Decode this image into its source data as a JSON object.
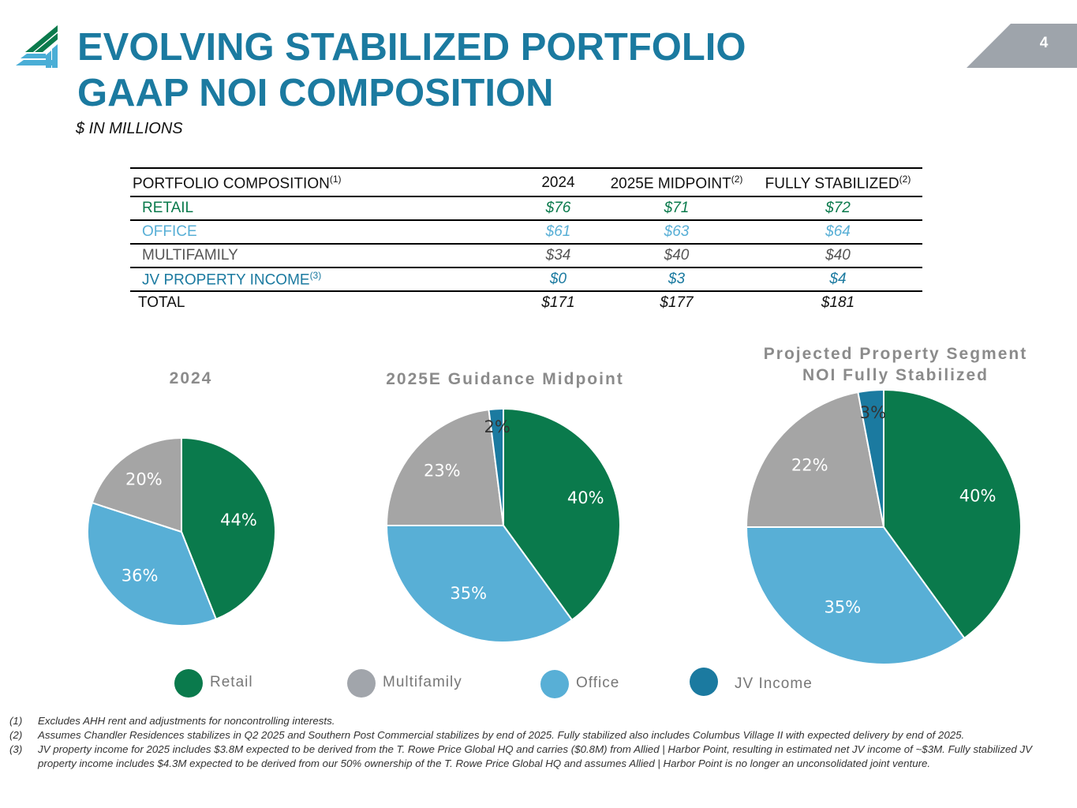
{
  "header": {
    "title_line1": "EVOLVING STABILIZED PORTFOLIO",
    "title_line2": "GAAP NOI COMPOSITION",
    "subtitle": "$ IN MILLIONS",
    "page_number": "4"
  },
  "colors": {
    "retail": "#0a7a4c",
    "office": "#58afd6",
    "multifamily": "#a5a5a5",
    "jv_income": "#1b7aa0",
    "title": "#1b7aa0",
    "page_tab": "#9ea4ab"
  },
  "table": {
    "header": {
      "label": "PORTFOLIO COMPOSITION",
      "label_note": "(1)",
      "col_2024": "2024",
      "col_2025": "2025E MIDPOINT",
      "col_2025_note": "(2)",
      "col_stab": "FULLY STABILIZED",
      "col_stab_note": "(2)"
    },
    "rows": [
      {
        "label": "RETAIL",
        "note": "",
        "v2024": "$76",
        "v2025": "$71",
        "vstab": "$72"
      },
      {
        "label": "OFFICE",
        "note": "",
        "v2024": "$61",
        "v2025": "$63",
        "vstab": "$64"
      },
      {
        "label": "MULTIFAMILY",
        "note": "",
        "v2024": "$34",
        "v2025": "$40",
        "vstab": "$40"
      },
      {
        "label": "JV PROPERTY INCOME",
        "note": "(3)",
        "v2024": "$0",
        "v2025": "$3",
        "vstab": "$4"
      },
      {
        "label": "TOTAL",
        "note": "",
        "v2024": "$171",
        "v2025": "$177",
        "vstab": "$181"
      }
    ]
  },
  "chart_data": [
    {
      "type": "pie",
      "title": "2024",
      "categories": [
        "Retail",
        "Office",
        "Multifamily",
        "JV Income"
      ],
      "values": [
        44,
        36,
        20,
        0
      ],
      "labels": [
        "44%",
        "36%",
        "20%",
        ""
      ]
    },
    {
      "type": "pie",
      "title": "2025E Guidance Midpoint",
      "categories": [
        "Retail",
        "Office",
        "Multifamily",
        "JV Income"
      ],
      "values": [
        40,
        35,
        23,
        2
      ],
      "labels": [
        "40%",
        "35%",
        "23%",
        "2%"
      ]
    },
    {
      "type": "pie",
      "title": "Projected Property Segment NOI Fully Stabilized",
      "title_line1": "Projected Property Segment",
      "title_line2": "NOI Fully Stabilized",
      "categories": [
        "Retail",
        "Office",
        "Multifamily",
        "JV Income"
      ],
      "values": [
        40,
        35,
        22,
        3
      ],
      "labels": [
        "40%",
        "35%",
        "22%",
        "3%"
      ]
    }
  ],
  "legend": {
    "retail": "Retail",
    "multifamily": "Multifamily",
    "office": "Office",
    "jv": "JV Income"
  },
  "footnotes": [
    {
      "num": "(1)",
      "text": "Excludes AHH rent and adjustments for noncontrolling interests."
    },
    {
      "num": "(2)",
      "text": "Assumes Chandler Residences stabilizes in Q2 2025 and Southern Post Commercial stabilizes by end of 2025. Fully stabilized also includes Columbus Village II with expected delivery by end of 2025."
    },
    {
      "num": "(3)",
      "text": "JV property income for 2025 includes $3.8M expected to be derived from the T. Rowe Price Global HQ and carries ($0.8M) from Allied | Harbor Point, resulting in estimated net JV income of ~$3M. Fully stabilized JV property income includes $4.3M expected to be derived from our 50% ownership of the T. Rowe Price Global HQ and assumes Allied | Harbor Point is no longer an unconsolidated joint venture."
    }
  ]
}
